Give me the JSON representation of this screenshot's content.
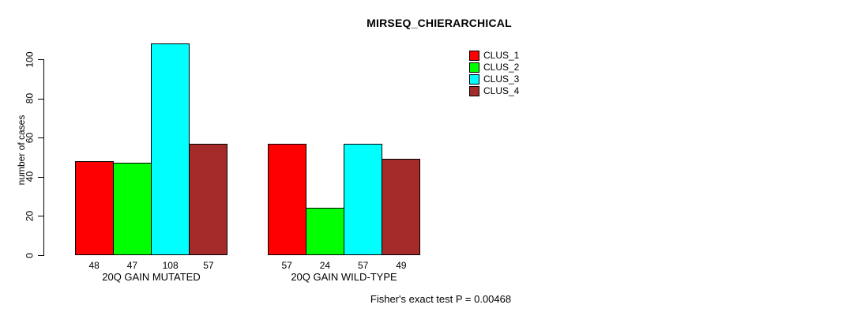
{
  "chart_data": {
    "type": "bar",
    "title": "MIRSEQ_CHIERARCHICAL",
    "ylabel": "number of cases",
    "xlabel": "",
    "categories": [
      "20Q GAIN MUTATED",
      "20Q GAIN WILD-TYPE"
    ],
    "series": [
      {
        "name": "CLUS_1",
        "color": "#FF0000",
        "values": [
          48,
          57
        ]
      },
      {
        "name": "CLUS_2",
        "color": "#00FF00",
        "values": [
          47,
          24
        ]
      },
      {
        "name": "CLUS_3",
        "color": "#00FFFF",
        "values": [
          108,
          57
        ]
      },
      {
        "name": "CLUS_4",
        "color": "#A52A2A",
        "values": [
          57,
          49
        ]
      }
    ],
    "yticks": [
      0,
      20,
      40,
      60,
      80,
      100
    ],
    "ylim": [
      0,
      110
    ],
    "grid": false,
    "legend_position": "top-right",
    "bar_value_labels": true,
    "annotation": "Fisher's exact test P = 0.00468"
  }
}
